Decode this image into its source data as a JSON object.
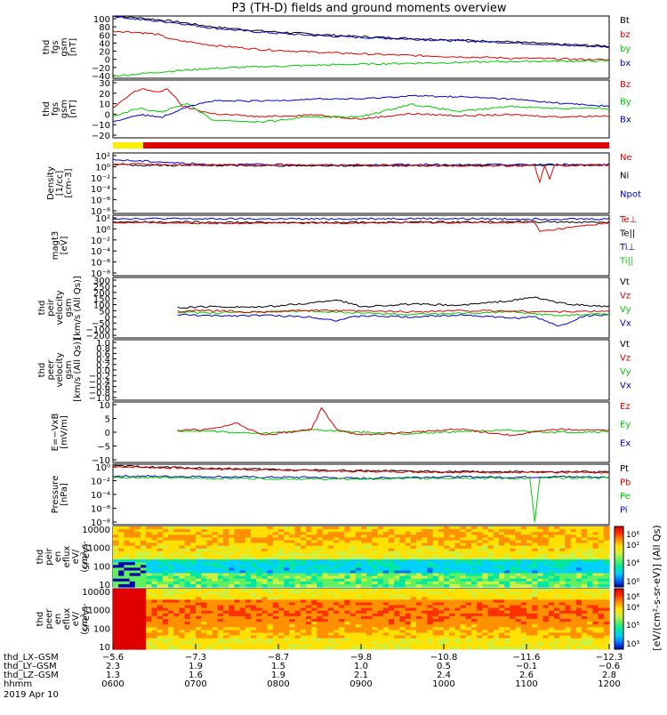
{
  "title": "P3 (TH-D) fields and ground moments overview",
  "colors": {
    "black": "#000000",
    "red": "#e00000",
    "green": "#00cc00",
    "blue": "#0000cc",
    "yellow": "#ffee00"
  },
  "chart_data": [
    {
      "type": "line",
      "ylabel": [
        "thd",
        "fgs",
        "gsm",
        "[nT]"
      ],
      "yticks": [
        "100",
        "80",
        "60",
        "40",
        "20",
        "0",
        "−20",
        "−40"
      ],
      "ylim": [
        -45,
        100
      ],
      "legend": [
        {
          "name": "Bt",
          "color": "black"
        },
        {
          "name": "bz",
          "color": "red"
        },
        {
          "name": "by",
          "color": "green"
        },
        {
          "name": "bx",
          "color": "blue"
        }
      ],
      "series": [
        {
          "name": "Bt",
          "color": "black",
          "x": [
            0,
            0.05,
            0.12,
            0.2,
            0.3,
            0.4,
            0.5,
            0.6,
            0.7,
            0.8,
            0.9,
            1.0
          ],
          "y": [
            100,
            96,
            88,
            75,
            65,
            58,
            52,
            48,
            44,
            40,
            34,
            30
          ]
        },
        {
          "name": "bx",
          "color": "blue",
          "x": [
            0,
            0.05,
            0.12,
            0.2,
            0.3,
            0.4,
            0.5,
            0.6,
            0.7,
            0.8,
            0.9,
            1.0
          ],
          "y": [
            100,
            92,
            85,
            72,
            62,
            55,
            50,
            46,
            42,
            38,
            32,
            28
          ]
        },
        {
          "name": "bz",
          "color": "red",
          "x": [
            0,
            0.05,
            0.09,
            0.12,
            0.2,
            0.3,
            0.4,
            0.5,
            0.6,
            0.7,
            0.8,
            0.9,
            1.0
          ],
          "y": [
            65,
            62,
            57,
            45,
            32,
            22,
            16,
            12,
            8,
            5,
            2,
            0,
            -2
          ]
        },
        {
          "name": "by",
          "color": "green",
          "x": [
            0,
            0.05,
            0.12,
            0.2,
            0.3,
            0.4,
            0.5,
            0.6,
            0.7,
            0.8,
            0.9,
            1.0
          ],
          "y": [
            -40,
            -35,
            -28,
            -22,
            -18,
            -15,
            -12,
            -10,
            -8,
            -6,
            -5,
            -5
          ]
        }
      ]
    },
    {
      "type": "line",
      "ylabel": [
        "thd",
        "fgs",
        "gsm",
        "[nT]"
      ],
      "yticks": [
        "30",
        "20",
        "10",
        "0",
        "−10",
        "−20"
      ],
      "ylim": [
        -25,
        30
      ],
      "legend": [
        {
          "name": "Bz",
          "color": "red"
        },
        {
          "name": "By",
          "color": "green"
        },
        {
          "name": "Bx",
          "color": "blue"
        }
      ],
      "series": [
        {
          "name": "Bz",
          "color": "red",
          "x": [
            0,
            0.04,
            0.06,
            0.09,
            0.11,
            0.14,
            0.2,
            0.3,
            0.4,
            0.5,
            0.6,
            0.7,
            0.8,
            0.9,
            1.0
          ],
          "y": [
            3,
            18,
            22,
            18,
            22,
            5,
            -2,
            -5,
            -3,
            -7,
            -2,
            -4,
            -3,
            -5,
            -4
          ]
        },
        {
          "name": "By",
          "color": "green",
          "x": [
            0,
            0.05,
            0.1,
            0.15,
            0.2,
            0.3,
            0.4,
            0.5,
            0.6,
            0.7,
            0.8,
            0.9,
            1.0
          ],
          "y": [
            -5,
            3,
            0,
            8,
            -8,
            -10,
            -5,
            -5,
            7,
            0,
            5,
            3,
            3
          ]
        },
        {
          "name": "Bx",
          "color": "blue",
          "x": [
            0,
            0.05,
            0.1,
            0.15,
            0.2,
            0.3,
            0.4,
            0.5,
            0.6,
            0.7,
            0.8,
            0.9,
            1.0
          ],
          "y": [
            -10,
            -3,
            -5,
            5,
            10,
            10,
            12,
            12,
            15,
            14,
            12,
            8,
            5
          ]
        }
      ]
    },
    {
      "type": "line",
      "ylabel": [
        "Density",
        "[1/cc]",
        "[cm-3]"
      ],
      "yticks": [
        "10²",
        "10⁰",
        "10⁻²",
        "10⁻⁴",
        "10⁻⁶",
        "10⁻⁸"
      ],
      "ylim": [
        -9,
        2.5
      ],
      "legend": [
        {
          "name": "Ne",
          "color": "red"
        },
        {
          "name": "Ni",
          "color": "black"
        },
        {
          "name": "Npot",
          "color": "blue"
        }
      ],
      "series": [
        {
          "name": "Npot",
          "color": "blue",
          "x": [
            0,
            0.05,
            0.1,
            0.13,
            0.2,
            0.3,
            0.4,
            0.5,
            0.6,
            0.7,
            0.8,
            0.9,
            1.0
          ],
          "y": [
            1.2,
            1.0,
            0.8,
            0.6,
            0.3,
            0.3,
            0.2,
            0.2,
            0.3,
            0.2,
            0.3,
            0.3,
            0.3
          ]
        },
        {
          "name": "Ni",
          "color": "black",
          "x": [
            0,
            0.2,
            0.4,
            0.6,
            0.8,
            1.0
          ],
          "y": [
            0.2,
            0.1,
            0.1,
            0.1,
            0.1,
            0.2
          ]
        },
        {
          "name": "Ne",
          "color": "red",
          "x": [
            0,
            0.2,
            0.4,
            0.6,
            0.8,
            0.85,
            0.86,
            0.87,
            0.88,
            0.89,
            0.9,
            1.0
          ],
          "y": [
            0.4,
            0.2,
            0.2,
            0.1,
            0.1,
            0.1,
            -3.0,
            0.1,
            -2.5,
            0.1,
            0.1,
            0.2
          ]
        }
      ]
    },
    {
      "type": "line",
      "ylabel": [
        "magt3",
        "[eV]"
      ],
      "yticks": [
        "10²",
        "10⁰",
        "10⁻²",
        "10⁻⁴",
        "10⁻⁶",
        "10⁻⁸"
      ],
      "ylim": [
        -9,
        4
      ],
      "legend": [
        {
          "name": "Te⊥",
          "color": "red"
        },
        {
          "name": "Te||",
          "color": "black"
        },
        {
          "name": "Ti⊥",
          "color": "blue"
        },
        {
          "name": "Ti||",
          "color": "green"
        }
      ],
      "series": [
        {
          "name": "Ti⊥",
          "color": "blue",
          "x": [
            0,
            0.2,
            0.4,
            0.6,
            0.8,
            1.0
          ],
          "y": [
            3.3,
            3.2,
            3.2,
            3.3,
            3.2,
            3.2
          ]
        },
        {
          "name": "Te||",
          "color": "black",
          "x": [
            0,
            0.2,
            0.4,
            0.6,
            0.8,
            1.0
          ],
          "y": [
            2.6,
            2.5,
            2.4,
            2.5,
            2.6,
            2.5
          ]
        },
        {
          "name": "Te⊥",
          "color": "red",
          "x": [
            0,
            0.2,
            0.4,
            0.6,
            0.8,
            0.85,
            0.86,
            1.0
          ],
          "y": [
            2.4,
            2.3,
            2.3,
            2.4,
            2.4,
            2.4,
            0.5,
            2.4
          ]
        }
      ]
    },
    {
      "type": "line",
      "ylabel": [
        "thd",
        "peir",
        "velocity",
        "gsm",
        "[km/s (All Qs)]"
      ],
      "yticks": [
        "300",
        "250",
        "200",
        "150",
        "100",
        "50",
        "0",
        "−50",
        "−100",
        "−200"
      ],
      "ylim": [
        -210,
        310
      ],
      "legend": [
        {
          "name": "Vt",
          "color": "black"
        },
        {
          "name": "Vz",
          "color": "red"
        },
        {
          "name": "Vy",
          "color": "green"
        },
        {
          "name": "Vx",
          "color": "blue"
        }
      ],
      "series": [
        {
          "name": "Vx",
          "color": "blue",
          "x": [
            0.13,
            0.2,
            0.3,
            0.4,
            0.45,
            0.5,
            0.6,
            0.7,
            0.8,
            0.85,
            0.9,
            0.95,
            1.0
          ],
          "y": [
            -10,
            -20,
            -15,
            -30,
            -60,
            -20,
            -30,
            -10,
            -40,
            -30,
            -110,
            -20,
            -10
          ]
        },
        {
          "name": "Vy",
          "color": "green",
          "x": [
            0.13,
            0.2,
            0.3,
            0.4,
            0.5,
            0.6,
            0.7,
            0.8,
            0.9,
            1.0
          ],
          "y": [
            10,
            5,
            15,
            20,
            5,
            -10,
            0,
            15,
            -20,
            0
          ]
        },
        {
          "name": "Vz",
          "color": "red",
          "x": [
            0.13,
            0.2,
            0.3,
            0.4,
            0.5,
            0.6,
            0.7,
            0.8,
            0.9,
            1.0
          ],
          "y": [
            20,
            25,
            10,
            30,
            20,
            15,
            25,
            20,
            15,
            20
          ]
        },
        {
          "name": "Vt",
          "color": "black",
          "x": [
            0.13,
            0.2,
            0.3,
            0.4,
            0.45,
            0.5,
            0.6,
            0.7,
            0.8,
            0.85,
            0.9,
            0.95,
            1.0
          ],
          "y": [
            50,
            60,
            55,
            90,
            120,
            60,
            80,
            70,
            110,
            140,
            90,
            70,
            60
          ]
        }
      ]
    },
    {
      "type": "line",
      "ylabel": [
        "thd",
        "peer",
        "velocity",
        "gsm",
        "[km/s (All Qs)]"
      ],
      "yticks": [
        "1.0",
        "0.8",
        "0.6",
        "0.4",
        "0.2",
        "0.0",
        "−0.2",
        "−0.4",
        "−0.6",
        "−0.8",
        "−1.0"
      ],
      "ylim": [
        -1.0,
        1.0
      ],
      "legend": [
        {
          "name": "Vt",
          "color": "black"
        },
        {
          "name": "Vz",
          "color": "red"
        },
        {
          "name": "Vy",
          "color": "green"
        },
        {
          "name": "Vx",
          "color": "blue"
        }
      ],
      "series": []
    },
    {
      "type": "line",
      "ylabel": [
        "E=−VxB",
        "[mV/m]"
      ],
      "yticks": [
        "10",
        "5",
        "0",
        "−5",
        "−10"
      ],
      "ylim": [
        -10,
        10
      ],
      "legend": [
        {
          "name": "Ez",
          "color": "red"
        },
        {
          "name": "Ey",
          "color": "green"
        },
        {
          "name": "Ex",
          "color": "blue"
        }
      ],
      "series": [
        {
          "name": "Ey",
          "color": "green",
          "x": [
            0.13,
            0.2,
            0.3,
            0.4,
            0.5,
            0.6,
            0.7,
            0.8,
            0.9,
            1.0
          ],
          "y": [
            0.5,
            0.3,
            -0.5,
            0.8,
            0,
            -0.5,
            0.3,
            0.5,
            0,
            0.2
          ]
        },
        {
          "name": "Ez",
          "color": "red",
          "x": [
            0.13,
            0.2,
            0.25,
            0.3,
            0.4,
            0.42,
            0.45,
            0.5,
            0.6,
            0.7,
            0.8,
            0.9,
            1.0
          ],
          "y": [
            0.5,
            1,
            3,
            -1,
            1,
            8,
            1,
            -1,
            0,
            1,
            -1,
            1,
            0.5
          ]
        }
      ]
    },
    {
      "type": "line",
      "ylabel": [
        "Pressure",
        "[nPa]"
      ],
      "yticks": [
        "10⁰",
        "10⁻²",
        "10⁻⁴",
        "10⁻⁶",
        "10⁻⁸"
      ],
      "ylim": [
        -9,
        1.2
      ],
      "legend": [
        {
          "name": "Pt",
          "color": "black"
        },
        {
          "name": "Pb",
          "color": "red"
        },
        {
          "name": "Pe",
          "color": "green"
        },
        {
          "name": "Pi",
          "color": "blue"
        }
      ],
      "series": [
        {
          "name": "Pt",
          "color": "black",
          "x": [
            0,
            0.2,
            0.4,
            0.6,
            0.8,
            1.0
          ],
          "y": [
            0.9,
            0.5,
            0.2,
            0,
            -0.1,
            -0.1
          ]
        },
        {
          "name": "Pb",
          "color": "red",
          "x": [
            0,
            0.2,
            0.4,
            0.6,
            0.8,
            1.0
          ],
          "y": [
            0.8,
            0.4,
            0.1,
            -0.1,
            -0.2,
            -0.2
          ]
        },
        {
          "name": "Pi",
          "color": "blue",
          "x": [
            0,
            0.2,
            0.3,
            0.4,
            0.5,
            0.6,
            0.7,
            0.8,
            0.9,
            1.0
          ],
          "y": [
            -0.8,
            -0.9,
            -1.0,
            -1.0,
            -1.2,
            -1.0,
            -0.9,
            -1.0,
            -0.9,
            -1.0
          ]
        },
        {
          "name": "Pe",
          "color": "green",
          "x": [
            0,
            0.2,
            0.3,
            0.4,
            0.5,
            0.6,
            0.7,
            0.8,
            0.84,
            0.85,
            0.86,
            0.9,
            1.0
          ],
          "y": [
            -1.0,
            -1.2,
            -1.2,
            -1.3,
            -1.3,
            -1.2,
            -1.1,
            -1.2,
            -1.2,
            -8.5,
            -1.2,
            -1.1,
            -1.1
          ]
        }
      ]
    },
    {
      "type": "heatmap",
      "ylabel": [
        "thd",
        "peir",
        "en",
        "eflux",
        "eV/",
        "(cm²-s-",
        "sr-eV)"
      ],
      "yticks": [
        "10000",
        "1000",
        "100",
        "10"
      ],
      "ylim_log10": [
        0.9,
        4.2
      ],
      "colorbar": {
        "min_label": "10⁰",
        "mid_labels": [
          "10⁴",
          "10²"
        ],
        "max_label": "10⁶"
      }
    },
    {
      "type": "heatmap",
      "ylabel": [
        "thd",
        "peer",
        "en",
        "eflux",
        "eV/",
        "(cm²-s-",
        "sr-eV)"
      ],
      "yticks": [
        "10000",
        "1000",
        "100",
        "10"
      ],
      "ylim_log10": [
        0.9,
        4.2
      ],
      "colorbar": {
        "min_label": "10³",
        "mid_labels": [
          "10⁵",
          "10⁴"
        ],
        "max_label": "10⁸"
      }
    }
  ],
  "colorbar_label": "[eV/(cm²-s-sr-eV)] (All Qs)",
  "xaxis": {
    "rows": [
      {
        "label": "thd_LX–GSM",
        "values": [
          "−5.6",
          "−7.3",
          "−8.7",
          "−9.8",
          "−10.8",
          "−11.6",
          "−12.3"
        ]
      },
      {
        "label": "thd_LY–GSM",
        "values": [
          "2.3",
          "1.9",
          "1.5",
          "1.0",
          "0.5",
          "−0.1",
          "−0.6"
        ]
      },
      {
        "label": "thd_LZ–GSM",
        "values": [
          "1.3",
          "1.6",
          "1.9",
          "2.1",
          "2.4",
          "2.6",
          "2.8"
        ]
      },
      {
        "label": "hhmm",
        "values": [
          "0600",
          "0700",
          "0800",
          "0900",
          "1000",
          "1100",
          "1200"
        ]
      }
    ],
    "date": "2019 Apr 10"
  }
}
